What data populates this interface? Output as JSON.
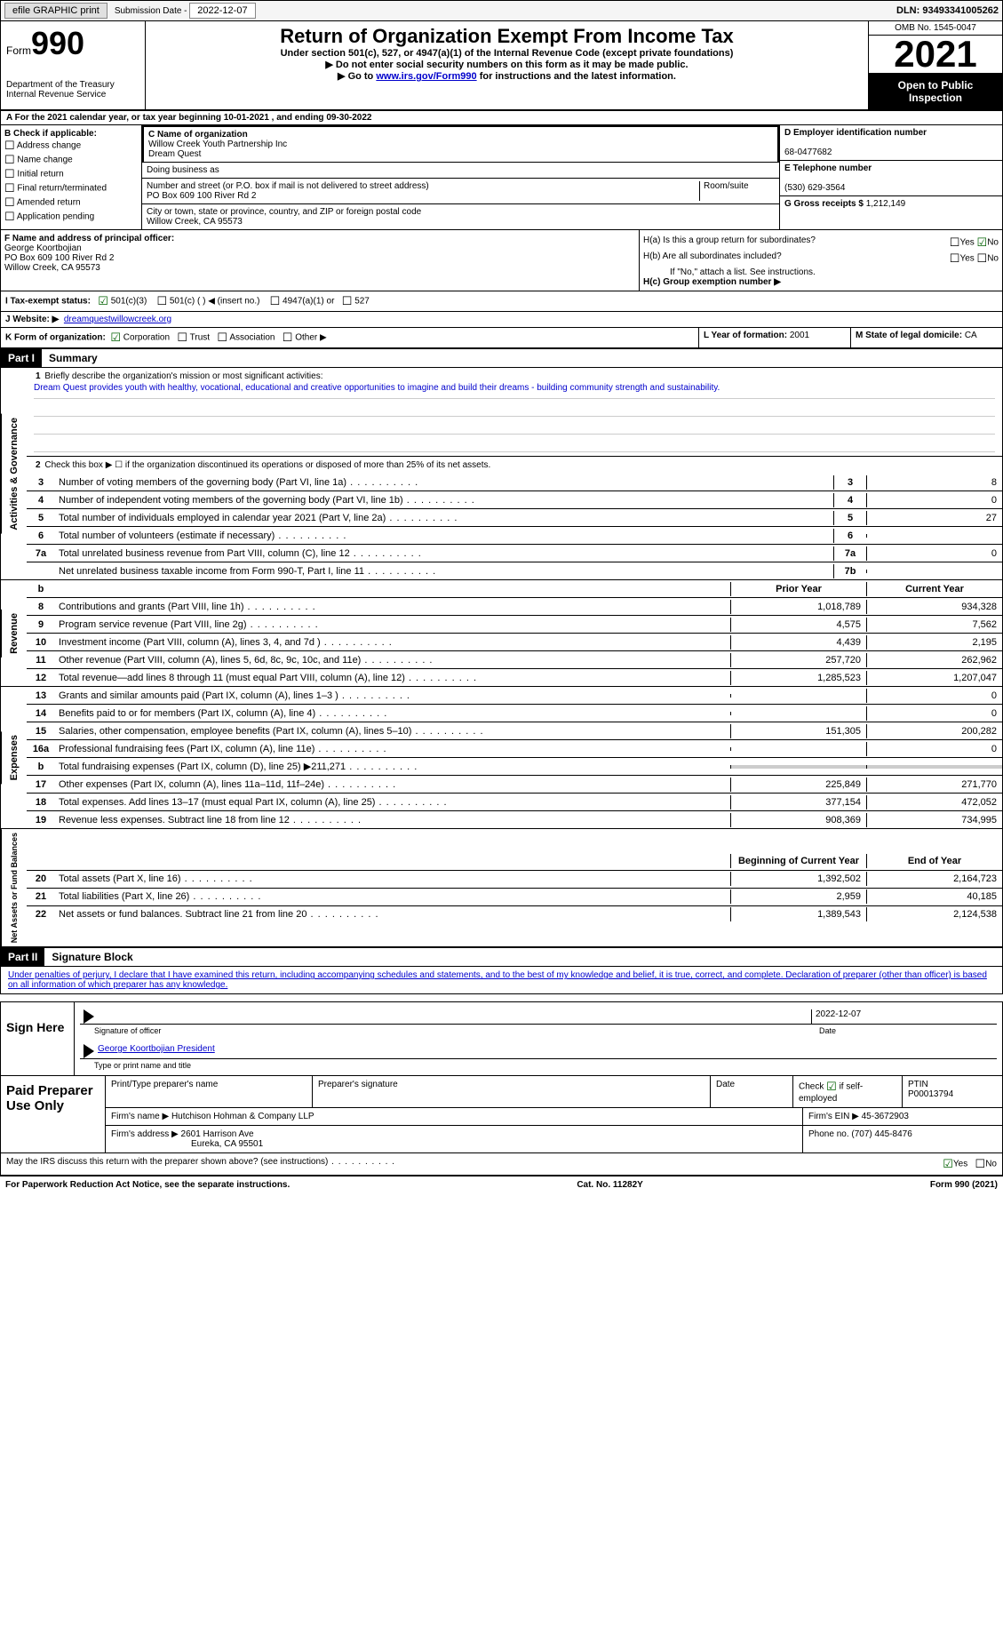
{
  "top": {
    "efile": "efile GRAPHIC print",
    "sub_label": "Submission Date -",
    "sub_date": "2022-12-07",
    "dln": "DLN: 93493341005262"
  },
  "header": {
    "form_label": "Form",
    "form_num": "990",
    "dept": "Department of the Treasury\nInternal Revenue Service",
    "title": "Return of Organization Exempt From Income Tax",
    "subtitle": "Under section 501(c), 527, or 4947(a)(1) of the Internal Revenue Code (except private foundations)",
    "instr1": "▶ Do not enter social security numbers on this form as it may be made public.",
    "instr2_a": "▶ Go to ",
    "instr2_link": "www.irs.gov/Form990",
    "instr2_b": " for instructions and the latest information.",
    "omb": "OMB No. 1545-0047",
    "year": "2021",
    "open": "Open to Public Inspection"
  },
  "section_a": {
    "text": "A For the 2021 calendar year, or tax year beginning 10-01-2021    , and ending 09-30-2022"
  },
  "section_b": {
    "label": "B Check if applicable:",
    "items": [
      "Address change",
      "Name change",
      "Initial return",
      "Final return/terminated",
      "Amended return",
      "Application pending"
    ]
  },
  "section_c": {
    "name_label": "C Name of organization",
    "name1": "Willow Creek Youth Partnership Inc",
    "name2": "Dream Quest",
    "dba_label": "Doing business as",
    "addr_label": "Number and street (or P.O. box if mail is not delivered to street address)",
    "room_label": "Room/suite",
    "addr": "PO Box 609 100 River Rd 2",
    "city_label": "City or town, state or province, country, and ZIP or foreign postal code",
    "city": "Willow Creek, CA  95573"
  },
  "section_d": {
    "ein_label": "D Employer identification number",
    "ein": "68-0477682",
    "tel_label": "E Telephone number",
    "tel": "(530) 629-3564",
    "gross_label": "G Gross receipts $",
    "gross": "1,212,149"
  },
  "section_f": {
    "label": "F  Name and address of principal officer:",
    "name": "George Koortbojian",
    "addr1": "PO Box 609 100 River Rd 2",
    "addr2": "Willow Creek, CA  95573"
  },
  "section_h": {
    "ha_label": "H(a)  Is this a group return for subordinates?",
    "hb_label": "H(b)  Are all subordinates included?",
    "hb_note": "If \"No,\" attach a list. See instructions.",
    "hc_label": "H(c)  Group exemption number ▶",
    "yes": "Yes",
    "no": "No"
  },
  "section_i": {
    "label": "I    Tax-exempt status:",
    "o1": "501(c)(3)",
    "o2": "501(c) (  ) ◀ (insert no.)",
    "o3": "4947(a)(1) or",
    "o4": "527"
  },
  "section_j": {
    "label": "J   Website: ▶",
    "val": "dreamquestwillowcreek.org"
  },
  "section_k": {
    "label": "K Form of organization:",
    "o1": "Corporation",
    "o2": "Trust",
    "o3": "Association",
    "o4": "Other ▶"
  },
  "section_l": {
    "label": "L Year of formation:",
    "val": "2001"
  },
  "section_m": {
    "label": "M State of legal domicile:",
    "val": "CA"
  },
  "part1": {
    "header": "Part I",
    "title": "Summary",
    "vert_act": "Activities & Governance",
    "vert_rev": "Revenue",
    "vert_exp": "Expenses",
    "vert_net": "Net Assets or Fund Balances",
    "q1": "Briefly describe the organization's mission or most significant activities:",
    "mission": "Dream Quest provides youth with healthy, vocational, educational and creative opportunities to imagine and build their dreams - building community strength and sustainability.",
    "q2": "Check this box ▶ ☐  if the organization discontinued its operations or disposed of more than 25% of its net assets.",
    "lines_act": [
      {
        "n": "3",
        "d": "Number of voting members of the governing body (Part VI, line 1a)",
        "b": "3",
        "v": "8"
      },
      {
        "n": "4",
        "d": "Number of independent voting members of the governing body (Part VI, line 1b)",
        "b": "4",
        "v": "0"
      },
      {
        "n": "5",
        "d": "Total number of individuals employed in calendar year 2021 (Part V, line 2a)",
        "b": "5",
        "v": "27"
      },
      {
        "n": "6",
        "d": "Total number of volunteers (estimate if necessary)",
        "b": "6",
        "v": ""
      },
      {
        "n": "7a",
        "d": "Total unrelated business revenue from Part VIII, column (C), line 12",
        "b": "7a",
        "v": "0"
      },
      {
        "n": "",
        "d": "Net unrelated business taxable income from Form 990-T, Part I, line 11",
        "b": "7b",
        "v": ""
      }
    ],
    "col_prior": "Prior Year",
    "col_curr": "Current Year",
    "lines_rev": [
      {
        "n": "8",
        "d": "Contributions and grants (Part VIII, line 1h)",
        "p": "1,018,789",
        "c": "934,328"
      },
      {
        "n": "9",
        "d": "Program service revenue (Part VIII, line 2g)",
        "p": "4,575",
        "c": "7,562"
      },
      {
        "n": "10",
        "d": "Investment income (Part VIII, column (A), lines 3, 4, and 7d )",
        "p": "4,439",
        "c": "2,195"
      },
      {
        "n": "11",
        "d": "Other revenue (Part VIII, column (A), lines 5, 6d, 8c, 9c, 10c, and 11e)",
        "p": "257,720",
        "c": "262,962"
      },
      {
        "n": "12",
        "d": "Total revenue—add lines 8 through 11 (must equal Part VIII, column (A), line 12)",
        "p": "1,285,523",
        "c": "1,207,047"
      }
    ],
    "lines_exp": [
      {
        "n": "13",
        "d": "Grants and similar amounts paid (Part IX, column (A), lines 1–3 )",
        "p": "",
        "c": "0"
      },
      {
        "n": "14",
        "d": "Benefits paid to or for members (Part IX, column (A), line 4)",
        "p": "",
        "c": "0"
      },
      {
        "n": "15",
        "d": "Salaries, other compensation, employee benefits (Part IX, column (A), lines 5–10)",
        "p": "151,305",
        "c": "200,282"
      },
      {
        "n": "16a",
        "d": "Professional fundraising fees (Part IX, column (A), line 11e)",
        "p": "",
        "c": "0"
      },
      {
        "n": "b",
        "d": "Total fundraising expenses (Part IX, column (D), line 25) ▶211,271",
        "p": "SHADE",
        "c": "SHADE"
      },
      {
        "n": "17",
        "d": "Other expenses (Part IX, column (A), lines 11a–11d, 11f–24e)",
        "p": "225,849",
        "c": "271,770"
      },
      {
        "n": "18",
        "d": "Total expenses. Add lines 13–17 (must equal Part IX, column (A), line 25)",
        "p": "377,154",
        "c": "472,052"
      },
      {
        "n": "19",
        "d": "Revenue less expenses. Subtract line 18 from line 12",
        "p": "908,369",
        "c": "734,995"
      }
    ],
    "col_beg": "Beginning of Current Year",
    "col_end": "End of Year",
    "lines_net": [
      {
        "n": "20",
        "d": "Total assets (Part X, line 16)",
        "p": "1,392,502",
        "c": "2,164,723"
      },
      {
        "n": "21",
        "d": "Total liabilities (Part X, line 26)",
        "p": "2,959",
        "c": "40,185"
      },
      {
        "n": "22",
        "d": "Net assets or fund balances. Subtract line 21 from line 20",
        "p": "1,389,543",
        "c": "2,124,538"
      }
    ]
  },
  "part2": {
    "header": "Part II",
    "title": "Signature Block",
    "perjury": "Under penalties of perjury, I declare that I have examined this return, including accompanying schedules and statements, and to the best of my knowledge and belief, it is true, correct, and complete. Declaration of preparer (other than officer) is based on all information of which preparer has any knowledge."
  },
  "sign": {
    "left": "Sign Here",
    "sig_label": "Signature of officer",
    "date_label": "Date",
    "date": "2022-12-07",
    "name": "George Koortbojian  President",
    "name_label": "Type or print name and title"
  },
  "prep": {
    "left": "Paid Preparer Use Only",
    "h1": "Print/Type preparer's name",
    "h2": "Preparer's signature",
    "h3": "Date",
    "h4_a": "Check",
    "h4_b": "if self-employed",
    "h5": "PTIN",
    "ptin": "P00013794",
    "firm_label": "Firm's name    ▶",
    "firm": "Hutchison Hohman & Company LLP",
    "ein_label": "Firm's EIN ▶",
    "ein": "45-3672903",
    "addr_label": "Firm's address ▶",
    "addr1": "2601 Harrison Ave",
    "addr2": "Eureka, CA  95501",
    "phone_label": "Phone no.",
    "phone": "(707) 445-8476"
  },
  "bottom": {
    "q": "May the IRS discuss this return with the preparer shown above? (see instructions)",
    "yes": "Yes",
    "no": "No"
  },
  "footer": {
    "left": "For Paperwork Reduction Act Notice, see the separate instructions.",
    "mid": "Cat. No. 11282Y",
    "right": "Form 990 (2021)"
  }
}
